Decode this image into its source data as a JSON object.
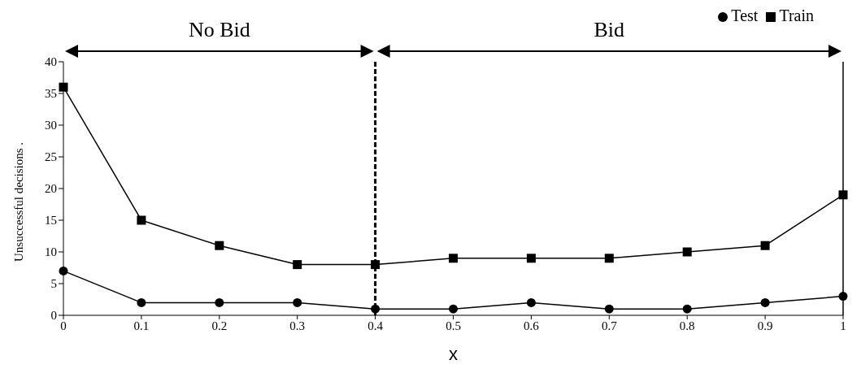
{
  "chart_data": {
    "type": "line",
    "xlabel": "x",
    "ylabel": "Unsuccessful decisions .",
    "x": [
      0,
      0.1,
      0.2,
      0.3,
      0.4,
      0.5,
      0.6,
      0.7,
      0.8,
      0.9,
      1
    ],
    "series": [
      {
        "name": "Test",
        "color": "#000000",
        "marker": "circle",
        "values": [
          7,
          2,
          2,
          2,
          1,
          1,
          2,
          1,
          1,
          2,
          3
        ]
      },
      {
        "name": "Train",
        "color": "#000000",
        "marker": "square",
        "values": [
          36,
          15,
          11,
          8,
          8,
          9,
          9,
          9,
          10,
          11,
          19
        ]
      }
    ],
    "xlim": [
      0,
      1
    ],
    "xticks": [
      0,
      0.1,
      0.2,
      0.3,
      0.4,
      0.5,
      0.6,
      0.7,
      0.8,
      0.9,
      1
    ],
    "ylim": [
      0,
      40
    ],
    "yticks": [
      0,
      5,
      10,
      15,
      20,
      25,
      30,
      35,
      40
    ],
    "ref_lines": [
      {
        "axis": "x",
        "value": 0.4,
        "line_style": "dashed",
        "color": "#000000"
      },
      {
        "axis": "x",
        "value": 1,
        "line_style": "solid",
        "color": "#000000"
      }
    ],
    "annotations": [
      "No Bid",
      "Bid"
    ],
    "legend": "top right",
    "grid": false,
    "line_style": "solid"
  }
}
